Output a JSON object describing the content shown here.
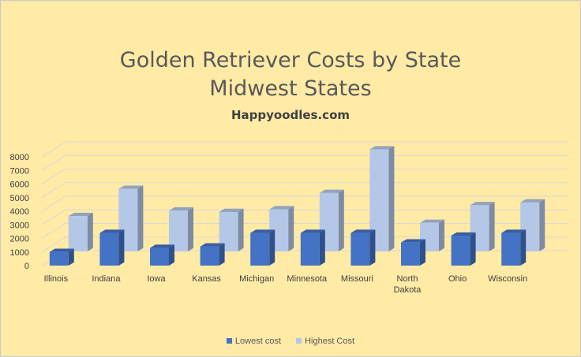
{
  "chart_data": {
    "type": "bar",
    "title_line1": "Golden Retriever Costs by State",
    "title_line2": "Midwest States",
    "subtitle": "Happyoodles.com",
    "categories": [
      "Illinois",
      "Indiana",
      "Iowa",
      "Kansas",
      "Michigan",
      "Minnesota",
      "Missouri",
      "North Dakota",
      "Ohio",
      "Wisconsin"
    ],
    "series": [
      {
        "name": "Lowest cost",
        "color": "#4472c4",
        "values": [
          1000,
          2400,
          1300,
          1400,
          2400,
          2400,
          2400,
          1700,
          2200,
          2400
        ]
      },
      {
        "name": "Highest Cost",
        "color": "#b4c7e7",
        "values": [
          2600,
          4600,
          3000,
          2900,
          3100,
          4300,
          7500,
          2100,
          3400,
          3600
        ]
      }
    ],
    "ylim": [
      0,
      8000
    ],
    "yticks": [
      0,
      1000,
      2000,
      3000,
      4000,
      5000,
      6000,
      7000,
      8000
    ],
    "grid": true,
    "legend_position": "bottom",
    "projection": "3d-column"
  }
}
